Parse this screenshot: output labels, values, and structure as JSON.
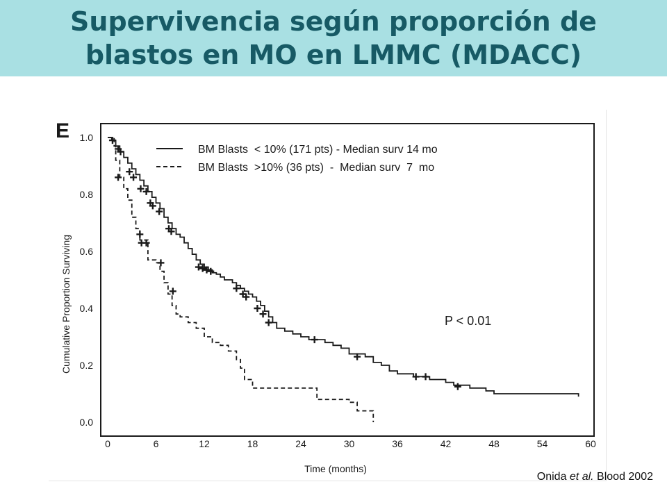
{
  "title": {
    "line1": "Supervivencia según proporción de",
    "line2": "blastos en MO en LMMC (MDACC)"
  },
  "citation": {
    "author": "Onida ",
    "etal": "et al.",
    "source": " Blood 2002"
  },
  "colors": {
    "title_band": "#a9e0e3",
    "title_text": "#175a65",
    "ink": "#1a1a1a"
  },
  "chart_data": {
    "type": "line",
    "panel_label": "E",
    "xlabel": "Time (months)",
    "ylabel": "Cumulative Proportion Surviving",
    "xlim": [
      0,
      60
    ],
    "ylim": [
      0,
      1.0
    ],
    "xticks": [
      0,
      6,
      12,
      18,
      24,
      30,
      36,
      42,
      48,
      54,
      60
    ],
    "yticks": [
      0.0,
      0.2,
      0.4,
      0.6,
      0.8,
      1.0
    ],
    "annotation": "P < 0.01",
    "legend_placement": "top",
    "grid": false,
    "series": [
      {
        "name": "BM Blasts  < 10% (171 pts) - Median surv 14 mo",
        "style": "solid",
        "x": [
          0,
          0.5,
          1,
          1.5,
          2,
          2.5,
          3,
          3.5,
          4,
          4.5,
          5,
          5.5,
          6,
          6.5,
          7,
          7.5,
          8,
          8.5,
          9,
          9.5,
          10,
          10.5,
          11,
          11.5,
          12,
          12.5,
          13,
          13.5,
          14,
          14.5,
          15,
          15.5,
          16,
          16.5,
          17,
          17.5,
          18,
          18.5,
          19,
          19.5,
          20,
          20.5,
          21,
          22,
          23,
          24,
          25,
          26,
          27,
          28,
          29,
          30,
          31,
          32,
          33,
          34,
          35,
          36,
          37,
          38,
          39,
          40,
          41,
          42,
          43,
          44,
          45,
          46,
          47,
          48,
          50,
          52,
          54,
          56,
          58,
          58.5
        ],
        "y": [
          1.0,
          0.99,
          0.97,
          0.95,
          0.93,
          0.91,
          0.89,
          0.87,
          0.85,
          0.83,
          0.81,
          0.79,
          0.77,
          0.75,
          0.72,
          0.7,
          0.68,
          0.66,
          0.65,
          0.63,
          0.61,
          0.59,
          0.57,
          0.555,
          0.545,
          0.535,
          0.525,
          0.52,
          0.51,
          0.5,
          0.5,
          0.49,
          0.48,
          0.47,
          0.46,
          0.45,
          0.44,
          0.425,
          0.41,
          0.39,
          0.37,
          0.35,
          0.33,
          0.32,
          0.31,
          0.3,
          0.29,
          0.29,
          0.28,
          0.27,
          0.26,
          0.24,
          0.24,
          0.23,
          0.21,
          0.2,
          0.18,
          0.17,
          0.17,
          0.16,
          0.16,
          0.15,
          0.15,
          0.14,
          0.13,
          0.13,
          0.12,
          0.12,
          0.11,
          0.1,
          0.1,
          0.1,
          0.1,
          0.1,
          0.1,
          0.09
        ],
        "censor_x": [
          0.6,
          1.3,
          1.6,
          2.7,
          3.2,
          4.1,
          4.8,
          5.3,
          5.6,
          6.4,
          7.6,
          7.9,
          11.3,
          11.8,
          12.3,
          12.8,
          16.0,
          16.8,
          17.2,
          18.6,
          19.3,
          20.0,
          25.7,
          31.0,
          38.3,
          39.5,
          43.5
        ],
        "censor_y": [
          0.99,
          0.96,
          0.95,
          0.88,
          0.86,
          0.82,
          0.81,
          0.77,
          0.76,
          0.74,
          0.68,
          0.67,
          0.545,
          0.54,
          0.535,
          0.53,
          0.47,
          0.45,
          0.44,
          0.4,
          0.38,
          0.35,
          0.29,
          0.23,
          0.16,
          0.16,
          0.125
        ]
      },
      {
        "name": "BM Blasts  >10% (36 pts)  -  Median surv  7  mo",
        "style": "dashed",
        "x": [
          0,
          0.8,
          1,
          1.5,
          2,
          2.5,
          3,
          3.5,
          4,
          5,
          6,
          6.5,
          7,
          7.5,
          8,
          8.5,
          9,
          10,
          11,
          12,
          13,
          14,
          15,
          16,
          16.5,
          17,
          18,
          19,
          20,
          22,
          24,
          26,
          28,
          30,
          31,
          32,
          33
        ],
        "y": [
          1.0,
          0.97,
          0.92,
          0.86,
          0.82,
          0.78,
          0.72,
          0.68,
          0.64,
          0.57,
          0.56,
          0.53,
          0.49,
          0.45,
          0.41,
          0.38,
          0.37,
          0.35,
          0.33,
          0.3,
          0.28,
          0.27,
          0.25,
          0.22,
          0.19,
          0.15,
          0.12,
          0.12,
          0.12,
          0.12,
          0.12,
          0.08,
          0.08,
          0.07,
          0.04,
          0.04,
          0.0
        ],
        "censor_x": [
          1.3,
          4.0,
          4.2,
          4.8,
          6.6,
          8.1
        ],
        "censor_y": [
          0.86,
          0.66,
          0.63,
          0.63,
          0.56,
          0.46
        ]
      }
    ]
  }
}
